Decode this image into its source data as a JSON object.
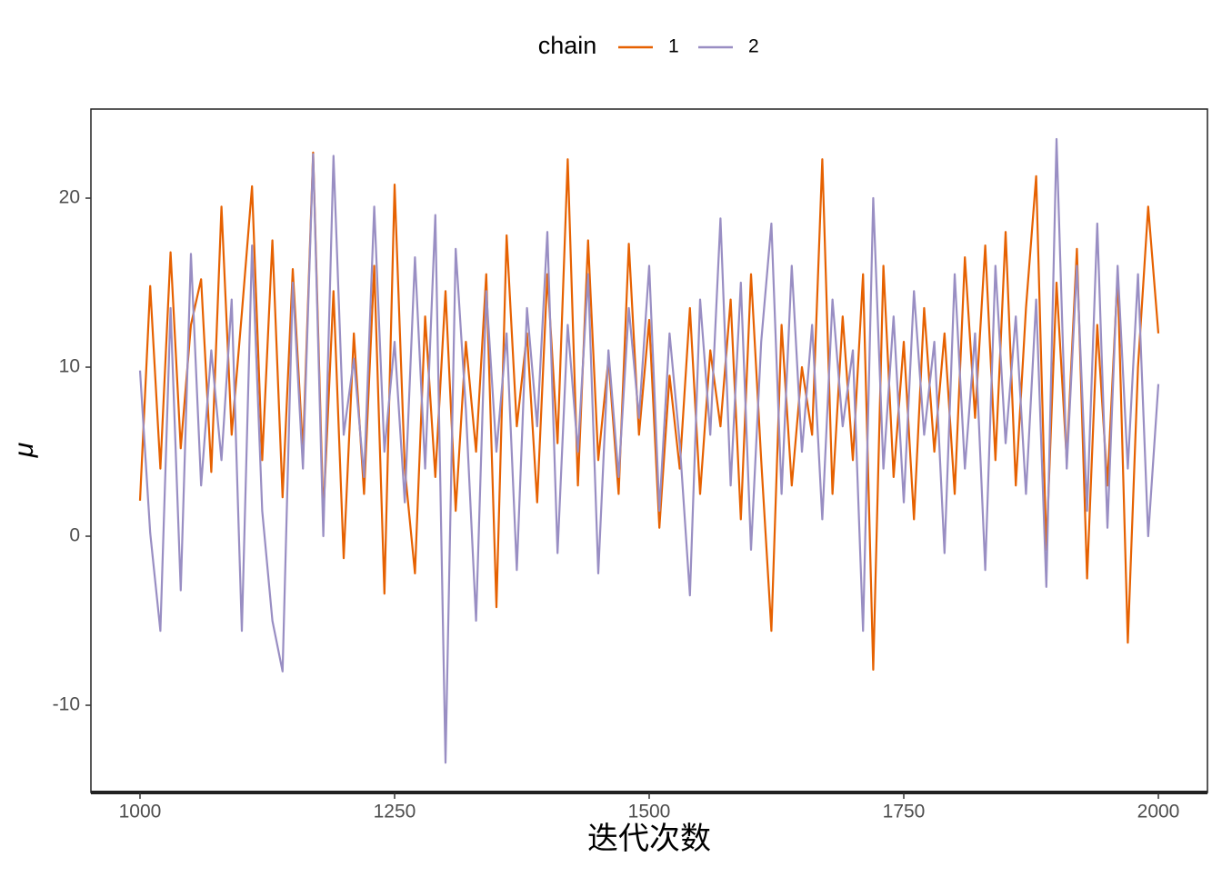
{
  "chart_data": {
    "type": "line",
    "x_label": "迭代次数",
    "y_label": "μ",
    "legend_title": "chain",
    "legend_position": "top",
    "x": [
      1000,
      1010,
      1020,
      1030,
      1040,
      1050,
      1060,
      1070,
      1080,
      1090,
      1100,
      1110,
      1120,
      1130,
      1140,
      1150,
      1160,
      1170,
      1180,
      1190,
      1200,
      1210,
      1220,
      1230,
      1240,
      1250,
      1260,
      1270,
      1280,
      1290,
      1300,
      1310,
      1320,
      1330,
      1340,
      1350,
      1360,
      1370,
      1380,
      1390,
      1400,
      1410,
      1420,
      1430,
      1440,
      1450,
      1460,
      1470,
      1480,
      1490,
      1500,
      1510,
      1520,
      1530,
      1540,
      1550,
      1560,
      1570,
      1580,
      1590,
      1600,
      1610,
      1620,
      1630,
      1640,
      1650,
      1660,
      1670,
      1680,
      1690,
      1700,
      1710,
      1720,
      1730,
      1740,
      1750,
      1760,
      1770,
      1780,
      1790,
      1800,
      1810,
      1820,
      1830,
      1840,
      1850,
      1860,
      1870,
      1880,
      1890,
      1900,
      1910,
      1920,
      1930,
      1940,
      1950,
      1960,
      1970,
      1980,
      1990,
      2000
    ],
    "series": [
      {
        "name": "1",
        "color": "#e66101",
        "values": [
          2.1,
          14.8,
          4.0,
          16.8,
          5.2,
          12.5,
          15.2,
          3.8,
          19.5,
          6.0,
          13.2,
          20.7,
          4.5,
          17.5,
          2.3,
          15.8,
          5.0,
          22.7,
          1.2,
          14.5,
          -1.3,
          12.0,
          2.5,
          16.0,
          -3.4,
          20.8,
          4.0,
          -2.2,
          13.0,
          3.5,
          14.5,
          1.5,
          11.5,
          5.0,
          15.5,
          -4.2,
          17.8,
          6.5,
          12.0,
          2.0,
          15.5,
          5.5,
          22.3,
          3.0,
          17.5,
          4.5,
          10.5,
          2.5,
          17.3,
          6.0,
          12.8,
          0.5,
          9.5,
          4.0,
          13.5,
          2.5,
          11.0,
          6.5,
          14.0,
          1.0,
          15.5,
          4.5,
          -5.6,
          12.5,
          3.0,
          10.0,
          6.0,
          22.3,
          2.5,
          13.0,
          4.5,
          15.5,
          -7.9,
          16.0,
          3.5,
          11.5,
          1.0,
          13.5,
          5.0,
          12.0,
          2.5,
          16.5,
          7.0,
          17.2,
          4.5,
          18.0,
          3.0,
          13.5,
          21.3,
          -0.8,
          15.0,
          4.5,
          17.0,
          -2.5,
          12.5,
          3.0,
          15.5,
          -6.3,
          10.0,
          19.5,
          12.0
        ]
      },
      {
        "name": "2",
        "color": "#998ec3",
        "values": [
          9.8,
          0.2,
          -5.6,
          13.5,
          -3.2,
          16.7,
          3.0,
          11.0,
          4.5,
          14.0,
          -5.6,
          17.2,
          1.5,
          -5.0,
          -8.0,
          15.0,
          4.0,
          22.6,
          0.0,
          22.5,
          6.0,
          10.5,
          3.5,
          19.5,
          5.0,
          11.5,
          2.0,
          16.5,
          4.0,
          19.0,
          -13.4,
          17.0,
          7.5,
          -5.0,
          14.5,
          5.0,
          12.0,
          -2.0,
          13.5,
          6.5,
          18.0,
          -1.0,
          12.5,
          5.0,
          15.5,
          -2.2,
          11.0,
          3.5,
          13.5,
          7.0,
          16.0,
          1.5,
          12.0,
          5.5,
          -3.5,
          14.0,
          6.0,
          18.8,
          3.0,
          15.0,
          -0.8,
          11.5,
          18.5,
          2.5,
          16.0,
          5.0,
          12.5,
          1.0,
          14.0,
          6.5,
          11.0,
          -5.6,
          20.0,
          4.0,
          13.0,
          2.0,
          14.5,
          6.0,
          11.5,
          -1.0,
          15.5,
          4.0,
          12.0,
          -2.0,
          16.0,
          5.5,
          13.0,
          2.5,
          14.0,
          -3.0,
          23.5,
          4.0,
          16.0,
          1.5,
          18.5,
          0.5,
          16.0,
          4.0,
          15.5,
          0.0,
          9.0
        ]
      }
    ],
    "xlim": [
      951.8,
      2048.2
    ],
    "xticks": [
      1000,
      1250,
      1500,
      1750,
      2000
    ],
    "ylim": [
      -15.16,
      25.27
    ],
    "yticks": [
      -10,
      0,
      10,
      20
    ],
    "grid": false
  }
}
